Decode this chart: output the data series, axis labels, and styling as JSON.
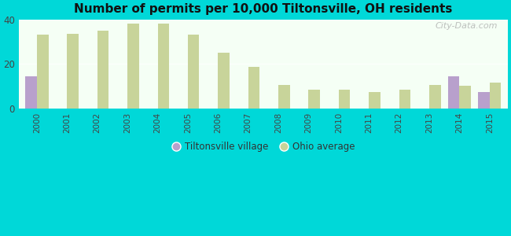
{
  "title": "Number of permits per 10,000 Tiltonsville, OH residents",
  "years": [
    2000,
    2001,
    2002,
    2003,
    2004,
    2005,
    2006,
    2007,
    2008,
    2009,
    2010,
    2011,
    2012,
    2013,
    2014,
    2015
  ],
  "ohio_avg_vals": [
    33.0,
    33.5,
    35.0,
    38.0,
    38.0,
    33.0,
    25.0,
    18.5,
    10.5,
    8.5,
    8.5,
    7.5,
    8.5,
    10.5,
    10.0,
    11.5
  ],
  "tiltonsville_vals": [
    14.5,
    0,
    0,
    0,
    0,
    0,
    0,
    0,
    0,
    0,
    0,
    0,
    0,
    0,
    14.5,
    7.5
  ],
  "tiltonsville_color": "#b8a0cc",
  "ohio_color": "#c8d49a",
  "background_outer": "#00d8d8",
  "background_inner": "#e8f5e0",
  "ylim": [
    0,
    40
  ],
  "yticks": [
    0,
    20,
    40
  ],
  "bar_width": 0.38,
  "watermark": "City-Data.com",
  "legend_tiltonsville": "Tiltonsville village",
  "legend_ohio": "Ohio average"
}
